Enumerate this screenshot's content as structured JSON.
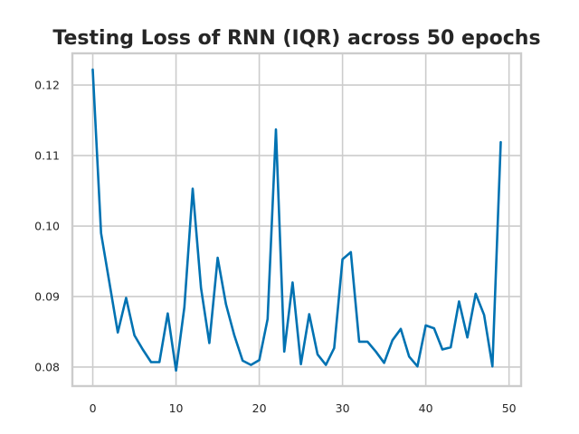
{
  "chart_data": {
    "type": "line",
    "title": "Testing Loss of RNN (IQR) across 50 epochs",
    "xlabel": "",
    "ylabel": "",
    "xlim": [
      -2.45,
      51.45
    ],
    "ylim": [
      0.0773,
      0.1245
    ],
    "xticks": [
      0,
      10,
      20,
      30,
      40,
      50
    ],
    "yticks": [
      0.08,
      0.09,
      0.1,
      0.11,
      0.12
    ],
    "ytick_labels": [
      "0.08",
      "0.09",
      "0.10",
      "0.11",
      "0.12"
    ],
    "grid": true,
    "legend": "none",
    "series": [
      {
        "color": "#0072b2",
        "x": [
          0,
          1,
          2,
          3,
          4,
          5,
          6,
          7,
          8,
          9,
          10,
          11,
          12,
          13,
          14,
          15,
          16,
          17,
          18,
          19,
          20,
          21,
          22,
          23,
          24,
          25,
          26,
          27,
          28,
          29,
          30,
          31,
          32,
          33,
          34,
          35,
          36,
          37,
          38,
          39,
          40,
          41,
          42,
          43,
          44,
          45,
          46,
          47,
          48,
          49
        ],
        "values": [
          0.1222,
          0.099,
          0.092,
          0.0849,
          0.0898,
          0.0845,
          0.0825,
          0.0807,
          0.0807,
          0.0876,
          0.0795,
          0.0885,
          0.1053,
          0.0912,
          0.0834,
          0.0955,
          0.0889,
          0.0845,
          0.0809,
          0.0803,
          0.081,
          0.0868,
          0.1137,
          0.0822,
          0.092,
          0.0804,
          0.0875,
          0.0818,
          0.0803,
          0.0827,
          0.0953,
          0.0963,
          0.0836,
          0.0836,
          0.0822,
          0.0806,
          0.0838,
          0.0854,
          0.0815,
          0.0801,
          0.0859,
          0.0855,
          0.0825,
          0.0828,
          0.0893,
          0.0842,
          0.0904,
          0.0874,
          0.0801,
          0.1119
        ]
      }
    ]
  }
}
